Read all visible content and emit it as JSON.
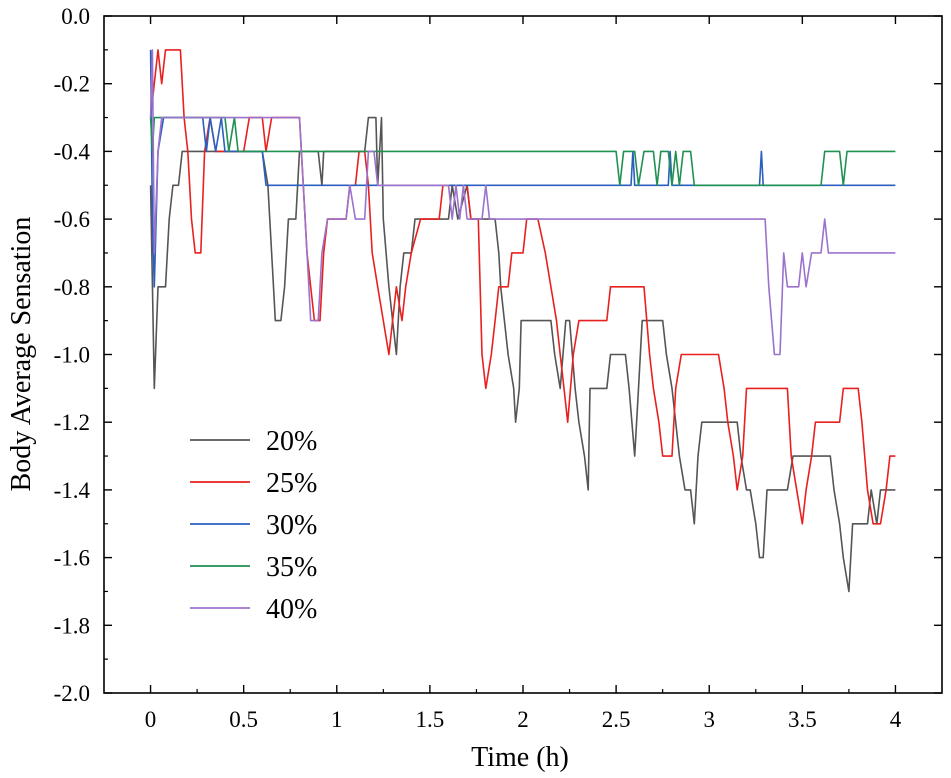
{
  "chart_data": {
    "type": "line",
    "title": "",
    "xlabel": "Time (h)",
    "ylabel": "Body Average Sensation",
    "xlim": [
      -0.25,
      4.25
    ],
    "ylim": [
      -2.0,
      0.0
    ],
    "xticks": [
      0,
      0.5,
      1,
      1.5,
      2,
      2.5,
      3,
      3.5,
      4
    ],
    "xtick_labels": [
      "0",
      "0.5",
      "1",
      "1.5",
      "2",
      "2.5",
      "3",
      "3.5",
      "4"
    ],
    "yticks": [
      0.0,
      -0.2,
      -0.4,
      -0.6,
      -0.8,
      -1.0,
      -1.2,
      -1.4,
      -1.6,
      -1.8,
      -2.0
    ],
    "ytick_labels": [
      "0.0",
      "-0.2",
      "-0.4",
      "-0.6",
      "-0.8",
      "-1.0",
      "-1.2",
      "-1.4",
      "-1.6",
      "-1.8",
      "-2.0"
    ],
    "grid": false,
    "legend_position": "left-middle",
    "series": [
      {
        "name": "20%",
        "color": "#555555",
        "points": [
          [
            0,
            -0.5
          ],
          [
            0.02,
            -1.1
          ],
          [
            0.04,
            -0.8
          ],
          [
            0.08,
            -0.8
          ],
          [
            0.1,
            -0.6
          ],
          [
            0.12,
            -0.5
          ],
          [
            0.15,
            -0.5
          ],
          [
            0.17,
            -0.4
          ],
          [
            0.6,
            -0.4
          ],
          [
            0.63,
            -0.5
          ],
          [
            0.66,
            -0.8
          ],
          [
            0.67,
            -0.9
          ],
          [
            0.7,
            -0.9
          ],
          [
            0.72,
            -0.8
          ],
          [
            0.74,
            -0.6
          ],
          [
            0.78,
            -0.6
          ],
          [
            0.8,
            -0.4
          ],
          [
            0.9,
            -0.4
          ],
          [
            0.92,
            -0.5
          ],
          [
            0.93,
            -0.4
          ],
          [
            1.15,
            -0.4
          ],
          [
            1.17,
            -0.3
          ],
          [
            1.21,
            -0.3
          ],
          [
            1.22,
            -0.5
          ],
          [
            1.24,
            -0.3
          ],
          [
            1.25,
            -0.6
          ],
          [
            1.28,
            -0.8
          ],
          [
            1.3,
            -0.9
          ],
          [
            1.32,
            -1.0
          ],
          [
            1.34,
            -0.8
          ],
          [
            1.36,
            -0.7
          ],
          [
            1.4,
            -0.7
          ],
          [
            1.42,
            -0.6
          ],
          [
            1.6,
            -0.6
          ],
          [
            1.62,
            -0.5
          ],
          [
            1.65,
            -0.6
          ],
          [
            1.7,
            -0.5
          ],
          [
            1.72,
            -0.6
          ],
          [
            1.85,
            -0.6
          ],
          [
            1.87,
            -0.7
          ],
          [
            1.88,
            -0.8
          ],
          [
            1.9,
            -0.9
          ],
          [
            1.92,
            -1.0
          ],
          [
            1.95,
            -1.1
          ],
          [
            1.96,
            -1.2
          ],
          [
            1.98,
            -1.1
          ],
          [
            1.99,
            -0.9
          ],
          [
            2.15,
            -0.9
          ],
          [
            2.17,
            -1.0
          ],
          [
            2.2,
            -1.1
          ],
          [
            2.23,
            -0.9
          ],
          [
            2.25,
            -0.9
          ],
          [
            2.28,
            -1.1
          ],
          [
            2.3,
            -1.2
          ],
          [
            2.33,
            -1.3
          ],
          [
            2.35,
            -1.4
          ],
          [
            2.36,
            -1.1
          ],
          [
            2.45,
            -1.1
          ],
          [
            2.47,
            -1.0
          ],
          [
            2.55,
            -1.0
          ],
          [
            2.57,
            -1.1
          ],
          [
            2.6,
            -1.3
          ],
          [
            2.62,
            -1.1
          ],
          [
            2.64,
            -0.9
          ],
          [
            2.75,
            -0.9
          ],
          [
            2.77,
            -1.0
          ],
          [
            2.8,
            -1.1
          ],
          [
            2.82,
            -1.2
          ],
          [
            2.84,
            -1.3
          ],
          [
            2.87,
            -1.4
          ],
          [
            2.9,
            -1.4
          ],
          [
            2.92,
            -1.5
          ],
          [
            2.94,
            -1.3
          ],
          [
            2.96,
            -1.2
          ],
          [
            3.15,
            -1.2
          ],
          [
            3.17,
            -1.3
          ],
          [
            3.2,
            -1.4
          ],
          [
            3.22,
            -1.4
          ],
          [
            3.25,
            -1.5
          ],
          [
            3.27,
            -1.6
          ],
          [
            3.29,
            -1.6
          ],
          [
            3.31,
            -1.4
          ],
          [
            3.42,
            -1.4
          ],
          [
            3.45,
            -1.3
          ],
          [
            3.65,
            -1.3
          ],
          [
            3.67,
            -1.4
          ],
          [
            3.7,
            -1.5
          ],
          [
            3.72,
            -1.6
          ],
          [
            3.75,
            -1.7
          ],
          [
            3.77,
            -1.5
          ],
          [
            3.85,
            -1.5
          ],
          [
            3.87,
            -1.4
          ],
          [
            3.9,
            -1.5
          ],
          [
            3.92,
            -1.4
          ],
          [
            4.0,
            -1.4
          ]
        ]
      },
      {
        "name": "25%",
        "color": "#e8211f",
        "points": [
          [
            0,
            -0.3
          ],
          [
            0.02,
            -0.2
          ],
          [
            0.04,
            -0.1
          ],
          [
            0.06,
            -0.2
          ],
          [
            0.08,
            -0.1
          ],
          [
            0.16,
            -0.1
          ],
          [
            0.18,
            -0.3
          ],
          [
            0.2,
            -0.4
          ],
          [
            0.22,
            -0.6
          ],
          [
            0.24,
            -0.7
          ],
          [
            0.27,
            -0.7
          ],
          [
            0.29,
            -0.4
          ],
          [
            0.32,
            -0.3
          ],
          [
            0.35,
            -0.4
          ],
          [
            0.5,
            -0.4
          ],
          [
            0.53,
            -0.3
          ],
          [
            0.6,
            -0.3
          ],
          [
            0.62,
            -0.4
          ],
          [
            0.65,
            -0.3
          ],
          [
            0.8,
            -0.3
          ],
          [
            0.82,
            -0.5
          ],
          [
            0.84,
            -0.7
          ],
          [
            0.86,
            -0.8
          ],
          [
            0.88,
            -0.9
          ],
          [
            0.91,
            -0.9
          ],
          [
            0.93,
            -0.7
          ],
          [
            0.95,
            -0.6
          ],
          [
            1.05,
            -0.6
          ],
          [
            1.07,
            -0.5
          ],
          [
            1.1,
            -0.5
          ],
          [
            1.12,
            -0.4
          ],
          [
            1.15,
            -0.4
          ],
          [
            1.17,
            -0.5
          ],
          [
            1.19,
            -0.7
          ],
          [
            1.22,
            -0.8
          ],
          [
            1.25,
            -0.9
          ],
          [
            1.28,
            -1.0
          ],
          [
            1.3,
            -0.9
          ],
          [
            1.32,
            -0.8
          ],
          [
            1.35,
            -0.9
          ],
          [
            1.37,
            -0.8
          ],
          [
            1.4,
            -0.7
          ],
          [
            1.45,
            -0.6
          ],
          [
            1.55,
            -0.6
          ],
          [
            1.57,
            -0.5
          ],
          [
            1.7,
            -0.5
          ],
          [
            1.72,
            -0.6
          ],
          [
            1.76,
            -0.6
          ],
          [
            1.78,
            -1.0
          ],
          [
            1.8,
            -1.1
          ],
          [
            1.83,
            -1.0
          ],
          [
            1.85,
            -0.9
          ],
          [
            1.87,
            -0.8
          ],
          [
            1.92,
            -0.8
          ],
          [
            1.94,
            -0.7
          ],
          [
            2.0,
            -0.7
          ],
          [
            2.02,
            -0.6
          ],
          [
            2.08,
            -0.6
          ],
          [
            2.12,
            -0.7
          ],
          [
            2.15,
            -0.8
          ],
          [
            2.18,
            -0.9
          ],
          [
            2.2,
            -1.0
          ],
          [
            2.22,
            -1.1
          ],
          [
            2.24,
            -1.2
          ],
          [
            2.27,
            -1.0
          ],
          [
            2.3,
            -0.9
          ],
          [
            2.45,
            -0.9
          ],
          [
            2.47,
            -0.8
          ],
          [
            2.65,
            -0.8
          ],
          [
            2.68,
            -1.0
          ],
          [
            2.7,
            -1.1
          ],
          [
            2.73,
            -1.2
          ],
          [
            2.75,
            -1.3
          ],
          [
            2.8,
            -1.3
          ],
          [
            2.82,
            -1.1
          ],
          [
            2.85,
            -1.0
          ],
          [
            3.05,
            -1.0
          ],
          [
            3.08,
            -1.1
          ],
          [
            3.1,
            -1.2
          ],
          [
            3.13,
            -1.3
          ],
          [
            3.15,
            -1.4
          ],
          [
            3.18,
            -1.3
          ],
          [
            3.2,
            -1.1
          ],
          [
            3.42,
            -1.1
          ],
          [
            3.44,
            -1.3
          ],
          [
            3.47,
            -1.4
          ],
          [
            3.5,
            -1.5
          ],
          [
            3.52,
            -1.4
          ],
          [
            3.55,
            -1.3
          ],
          [
            3.57,
            -1.2
          ],
          [
            3.7,
            -1.2
          ],
          [
            3.72,
            -1.1
          ],
          [
            3.8,
            -1.1
          ],
          [
            3.82,
            -1.2
          ],
          [
            3.85,
            -1.4
          ],
          [
            3.88,
            -1.5
          ],
          [
            3.92,
            -1.5
          ],
          [
            3.95,
            -1.4
          ],
          [
            3.97,
            -1.3
          ],
          [
            4.0,
            -1.3
          ]
        ]
      },
      {
        "name": "30%",
        "color": "#2a5fc0",
        "points": [
          [
            0,
            -0.1
          ],
          [
            0.01,
            -0.6
          ],
          [
            0.02,
            -0.8
          ],
          [
            0.04,
            -0.4
          ],
          [
            0.07,
            -0.3
          ],
          [
            0.28,
            -0.3
          ],
          [
            0.3,
            -0.4
          ],
          [
            0.32,
            -0.3
          ],
          [
            0.35,
            -0.4
          ],
          [
            0.38,
            -0.3
          ],
          [
            0.4,
            -0.4
          ],
          [
            0.6,
            -0.4
          ],
          [
            0.62,
            -0.5
          ],
          [
            1.8,
            -0.5
          ],
          [
            1.82,
            -0.5
          ],
          [
            2.58,
            -0.5
          ],
          [
            2.59,
            -0.4
          ],
          [
            2.6,
            -0.5
          ],
          [
            2.78,
            -0.5
          ],
          [
            2.79,
            -0.4
          ],
          [
            2.8,
            -0.5
          ],
          [
            3.27,
            -0.5
          ],
          [
            3.28,
            -0.4
          ],
          [
            3.29,
            -0.5
          ],
          [
            4.0,
            -0.5
          ]
        ]
      },
      {
        "name": "35%",
        "color": "#1f9150",
        "points": [
          [
            0,
            -0.3
          ],
          [
            0.01,
            -0.4
          ],
          [
            0.02,
            -0.3
          ],
          [
            0.4,
            -0.3
          ],
          [
            0.42,
            -0.4
          ],
          [
            0.45,
            -0.3
          ],
          [
            0.47,
            -0.4
          ],
          [
            2.5,
            -0.4
          ],
          [
            2.52,
            -0.5
          ],
          [
            2.54,
            -0.4
          ],
          [
            2.6,
            -0.4
          ],
          [
            2.62,
            -0.5
          ],
          [
            2.65,
            -0.4
          ],
          [
            2.7,
            -0.4
          ],
          [
            2.72,
            -0.5
          ],
          [
            2.74,
            -0.4
          ],
          [
            2.78,
            -0.4
          ],
          [
            2.8,
            -0.5
          ],
          [
            2.82,
            -0.4
          ],
          [
            2.84,
            -0.5
          ],
          [
            2.86,
            -0.4
          ],
          [
            2.9,
            -0.4
          ],
          [
            2.92,
            -0.5
          ],
          [
            3.6,
            -0.5
          ],
          [
            3.62,
            -0.4
          ],
          [
            3.7,
            -0.4
          ],
          [
            3.72,
            -0.5
          ],
          [
            3.74,
            -0.4
          ],
          [
            4.0,
            -0.4
          ]
        ]
      },
      {
        "name": "40%",
        "color": "#9b72cc",
        "points": [
          [
            0,
            -0.3
          ],
          [
            0.01,
            -0.1
          ],
          [
            0.02,
            -0.7
          ],
          [
            0.04,
            -0.4
          ],
          [
            0.06,
            -0.3
          ],
          [
            0.8,
            -0.3
          ],
          [
            0.82,
            -0.5
          ],
          [
            0.84,
            -0.7
          ],
          [
            0.86,
            -0.9
          ],
          [
            0.9,
            -0.9
          ],
          [
            0.92,
            -0.7
          ],
          [
            0.95,
            -0.6
          ],
          [
            1.05,
            -0.6
          ],
          [
            1.07,
            -0.5
          ],
          [
            1.1,
            -0.6
          ],
          [
            1.15,
            -0.6
          ],
          [
            1.17,
            -0.4
          ],
          [
            1.2,
            -0.4
          ],
          [
            1.22,
            -0.5
          ],
          [
            1.6,
            -0.5
          ],
          [
            1.62,
            -0.6
          ],
          [
            1.64,
            -0.5
          ],
          [
            1.66,
            -0.6
          ],
          [
            1.68,
            -0.5
          ],
          [
            1.7,
            -0.6
          ],
          [
            1.78,
            -0.6
          ],
          [
            1.8,
            -0.5
          ],
          [
            1.82,
            -0.6
          ],
          [
            3.3,
            -0.6
          ],
          [
            3.32,
            -0.8
          ],
          [
            3.35,
            -1.0
          ],
          [
            3.38,
            -1.0
          ],
          [
            3.4,
            -0.7
          ],
          [
            3.42,
            -0.8
          ],
          [
            3.48,
            -0.8
          ],
          [
            3.5,
            -0.7
          ],
          [
            3.52,
            -0.8
          ],
          [
            3.55,
            -0.7
          ],
          [
            3.6,
            -0.7
          ],
          [
            3.62,
            -0.6
          ],
          [
            3.64,
            -0.7
          ],
          [
            3.65,
            -0.7
          ],
          [
            4.0,
            -0.7
          ]
        ]
      }
    ]
  }
}
